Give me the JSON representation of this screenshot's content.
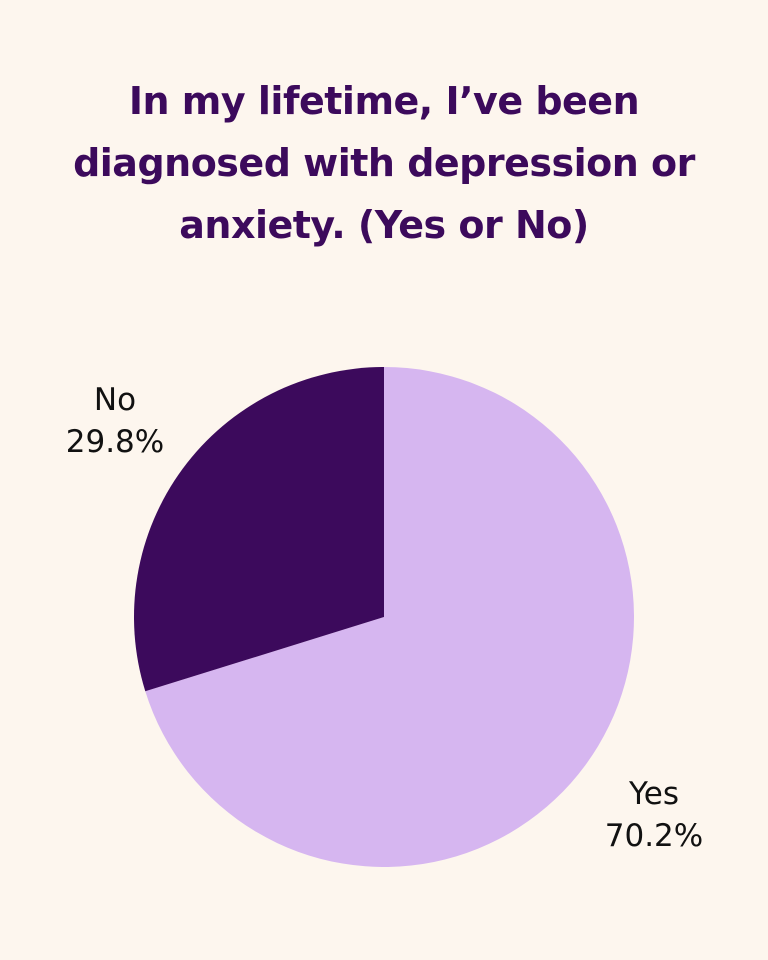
{
  "page": {
    "background": "#FDF6EE"
  },
  "chart_data": {
    "type": "pie",
    "title_lines": [
      "In my lifetime, I’ve been",
      "diagnosed with depression or",
      "anxiety. (Yes or No)"
    ],
    "title_color": "#3C0A5C",
    "start": "12 o'clock",
    "direction": "clockwise",
    "slices": [
      {
        "label": "Yes",
        "value": 70.2,
        "value_label": "70.2%",
        "color": "#D6B6F0"
      },
      {
        "label": "No",
        "value": 29.8,
        "value_label": "29.8%",
        "color": "#3C0A5C"
      }
    ],
    "label_placement": "outside",
    "legend": "none"
  }
}
